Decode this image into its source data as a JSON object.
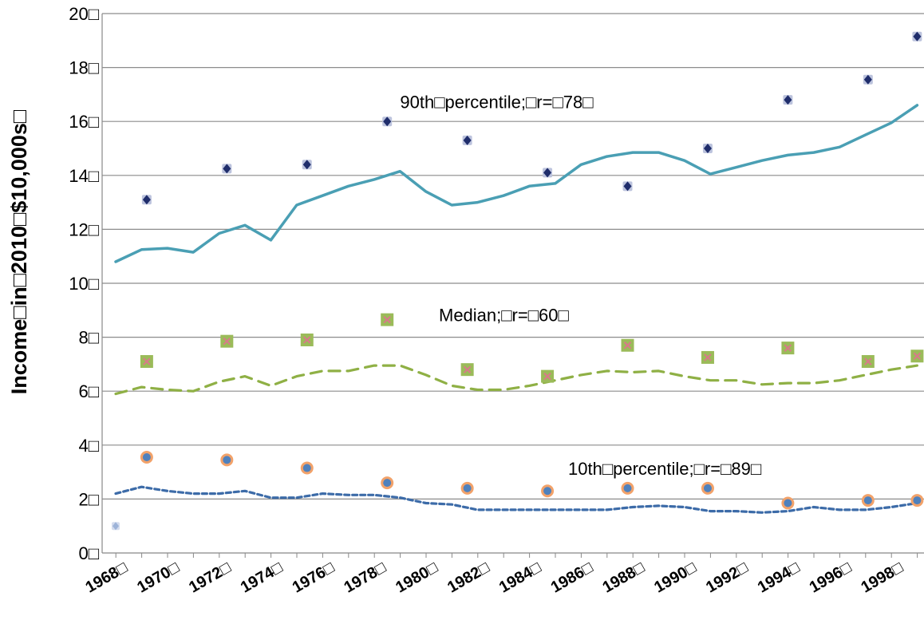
{
  "chart_data": {
    "type": "scatter",
    "ylabel": "Income□in□2010□$10,000s□",
    "ylim": [
      0,
      20
    ],
    "xlim": [
      1968,
      1999
    ],
    "grid": true,
    "y_ticks": [
      "0□",
      "2□",
      "4□",
      "6□",
      "8□",
      "10□",
      "12□",
      "14□",
      "16□",
      "18□",
      "20□"
    ],
    "x_ticks": [
      "1968□",
      "1970□",
      "1972□",
      "1974□",
      "1976□",
      "1978□",
      "1980□",
      "1982□",
      "1984□",
      "1986□",
      "1988□",
      "1990□",
      "1992□",
      "1994□",
      "1996□",
      "1998□"
    ],
    "annotations": [
      {
        "text": "90th□percentile;□r=□78□",
        "x": 1979,
        "y": 16.5
      },
      {
        "text": "Median;□r=□60□",
        "x": 1980.5,
        "y": 8.6
      },
      {
        "text": "10th□percentile;□r=□89□",
        "x": 1985.5,
        "y": 2.9
      }
    ],
    "lines": [
      {
        "name": "90th percentile trend",
        "color": "#4a9fb4",
        "style": "solid",
        "x": [
          1968,
          1969,
          1970,
          1971,
          1972,
          1973,
          1974,
          1975,
          1976,
          1977,
          1978,
          1979,
          1980,
          1981,
          1982,
          1983,
          1984,
          1985,
          1986,
          1987,
          1988,
          1989,
          1990,
          1991,
          1992,
          1993,
          1994,
          1995,
          1996,
          1997,
          1998,
          1999
        ],
        "y": [
          10.8,
          11.25,
          11.3,
          11.15,
          11.85,
          12.15,
          11.6,
          12.9,
          13.25,
          13.6,
          13.85,
          14.15,
          13.4,
          12.9,
          13.0,
          13.25,
          13.6,
          13.7,
          14.4,
          14.7,
          14.85,
          14.85,
          14.55,
          14.05,
          14.3,
          14.55,
          14.75,
          14.85,
          15.05,
          15.5,
          15.95,
          16.6
        ]
      },
      {
        "name": "Median trend",
        "color": "#8fb045",
        "style": "dashed",
        "x": [
          1968,
          1969,
          1970,
          1971,
          1972,
          1973,
          1974,
          1975,
          1976,
          1977,
          1978,
          1979,
          1980,
          1981,
          1982,
          1983,
          1984,
          1985,
          1986,
          1987,
          1988,
          1989,
          1990,
          1991,
          1992,
          1993,
          1994,
          1995,
          1996,
          1997,
          1998,
          1999
        ],
        "y": [
          5.9,
          6.15,
          6.05,
          6.0,
          6.35,
          6.55,
          6.2,
          6.55,
          6.75,
          6.75,
          6.95,
          6.95,
          6.6,
          6.2,
          6.05,
          6.05,
          6.2,
          6.4,
          6.6,
          6.75,
          6.7,
          6.75,
          6.55,
          6.4,
          6.4,
          6.25,
          6.3,
          6.3,
          6.4,
          6.6,
          6.8,
          6.95
        ]
      },
      {
        "name": "10th percentile trend",
        "color": "#3c6ba8",
        "style": "dotted",
        "x": [
          1968,
          1969,
          1970,
          1971,
          1972,
          1973,
          1974,
          1975,
          1976,
          1977,
          1978,
          1979,
          1980,
          1981,
          1982,
          1983,
          1984,
          1985,
          1986,
          1987,
          1988,
          1989,
          1990,
          1991,
          1992,
          1993,
          1994,
          1995,
          1996,
          1997,
          1998,
          1999
        ],
        "y": [
          2.2,
          2.45,
          2.3,
          2.2,
          2.2,
          2.3,
          2.05,
          2.05,
          2.2,
          2.15,
          2.15,
          2.05,
          1.85,
          1.8,
          1.6,
          1.6,
          1.6,
          1.6,
          1.6,
          1.6,
          1.7,
          1.75,
          1.7,
          1.55,
          1.55,
          1.5,
          1.55,
          1.7,
          1.6,
          1.6,
          1.7,
          1.85
        ]
      }
    ],
    "series": [
      {
        "name": "90th percentile",
        "marker": "dark-diamond",
        "color": "#1f2d6b",
        "x": [
          1969.2,
          1972.3,
          1975.4,
          1978.5,
          1981.6,
          1984.7,
          1987.8,
          1990.9,
          1994.0,
          1997.1,
          1999.0
        ],
        "y": [
          13.1,
          14.25,
          14.4,
          16.0,
          15.3,
          14.1,
          13.6,
          15.0,
          16.8,
          17.55,
          19.15
        ]
      },
      {
        "name": "Median",
        "marker": "green-square-x",
        "color": "#9bbb59",
        "x": [
          1969.2,
          1972.3,
          1975.4,
          1978.5,
          1981.6,
          1984.7,
          1987.8,
          1990.9,
          1994.0,
          1997.1,
          1999.0
        ],
        "y": [
          7.1,
          7.85,
          7.9,
          8.65,
          6.8,
          6.55,
          7.7,
          7.25,
          7.6,
          7.1,
          7.3
        ]
      },
      {
        "name": "10th percentile",
        "marker": "orange-circle",
        "color": "#4f81bd",
        "x": [
          1969.2,
          1972.3,
          1975.4,
          1978.5,
          1981.6,
          1984.7,
          1987.8,
          1990.9,
          1994.0,
          1997.1,
          1999.0
        ],
        "y": [
          3.55,
          3.45,
          3.15,
          2.6,
          2.4,
          2.3,
          2.4,
          2.4,
          1.85,
          1.95,
          1.95
        ]
      },
      {
        "name": "",
        "marker": "light-diamond",
        "color": "#9db3d8",
        "x": [
          1968
        ],
        "y": [
          1.0
        ]
      }
    ]
  }
}
